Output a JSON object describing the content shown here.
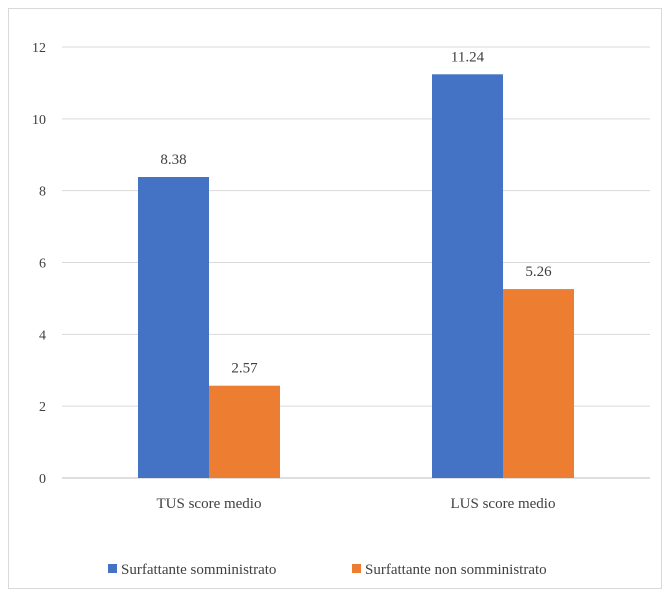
{
  "chart_data": {
    "type": "bar",
    "categories": [
      "TUS score medio",
      "LUS score medio"
    ],
    "series": [
      {
        "name": "Surfattante somministrato",
        "values": [
          8.38,
          11.24
        ],
        "color": "#4472c4"
      },
      {
        "name": "Surfattante non somministrato",
        "values": [
          2.57,
          5.26
        ],
        "color": "#ed7d31"
      }
    ],
    "data_labels": [
      [
        "8.38",
        "11.24"
      ],
      [
        "2.57",
        "5.26"
      ]
    ],
    "title": "",
    "xlabel": "",
    "ylabel": "",
    "ylim": [
      0,
      12
    ],
    "yticks": [
      "0",
      "2",
      "4",
      "6",
      "8",
      "10",
      "12"
    ],
    "grid": true,
    "legend_position": "bottom"
  }
}
